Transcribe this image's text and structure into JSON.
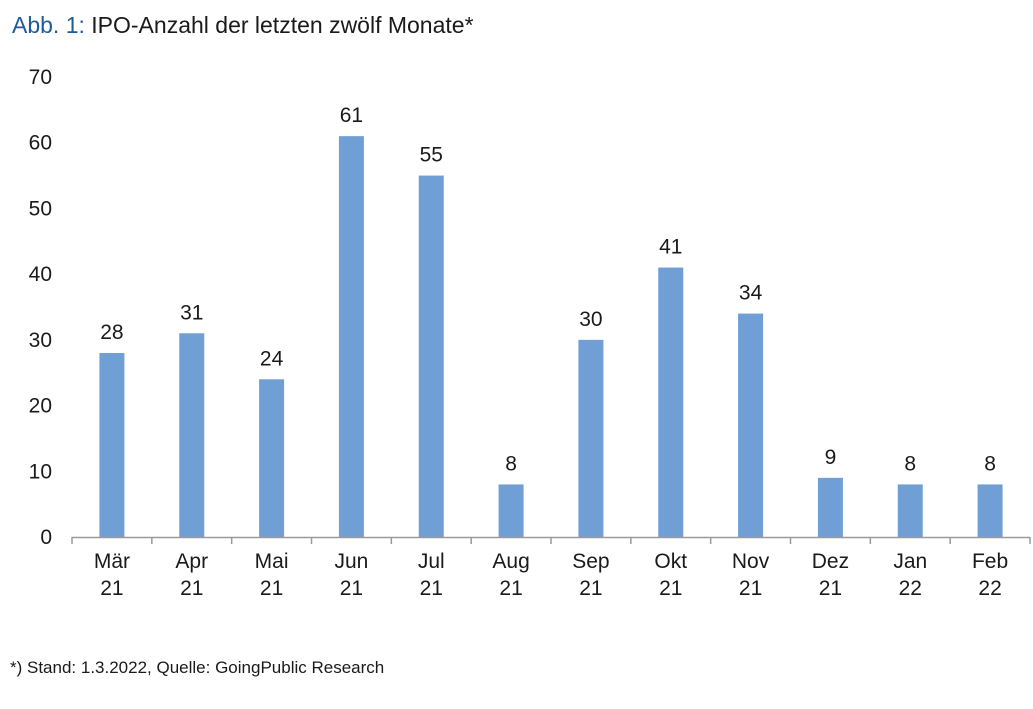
{
  "header": {
    "figure_label": "Abb. 1:",
    "title": "IPO-Anzahl der letzten zwölf Monate*"
  },
  "footnote": "*) Stand: 1.3.2022, Quelle: GoingPublic Research",
  "chart_data": {
    "type": "bar",
    "title": "Abb. 1: IPO-Anzahl der letzten zwölf Monate*",
    "categories": [
      [
        "Mär",
        "21"
      ],
      [
        "Apr",
        "21"
      ],
      [
        "Mai",
        "21"
      ],
      [
        "Jun",
        "21"
      ],
      [
        "Jul",
        "21"
      ],
      [
        "Aug",
        "21"
      ],
      [
        "Sep",
        "21"
      ],
      [
        "Okt",
        "21"
      ],
      [
        "Nov",
        "21"
      ],
      [
        "Dez",
        "21"
      ],
      [
        "Jan",
        "22"
      ],
      [
        "Feb",
        "22"
      ]
    ],
    "values": [
      28,
      31,
      24,
      61,
      55,
      8,
      30,
      41,
      34,
      9,
      8,
      8
    ],
    "data_labels": [
      "28",
      "31",
      "24",
      "61",
      "55",
      "8",
      "30",
      "41",
      "34",
      "9",
      "8",
      "8"
    ],
    "yticks": [
      "0",
      "10",
      "20",
      "30",
      "40",
      "50",
      "60",
      "70"
    ],
    "ylim": [
      0,
      70
    ],
    "grid": false,
    "bar_color": "#6f9fd4",
    "axis_color": "#9a9a9a"
  }
}
